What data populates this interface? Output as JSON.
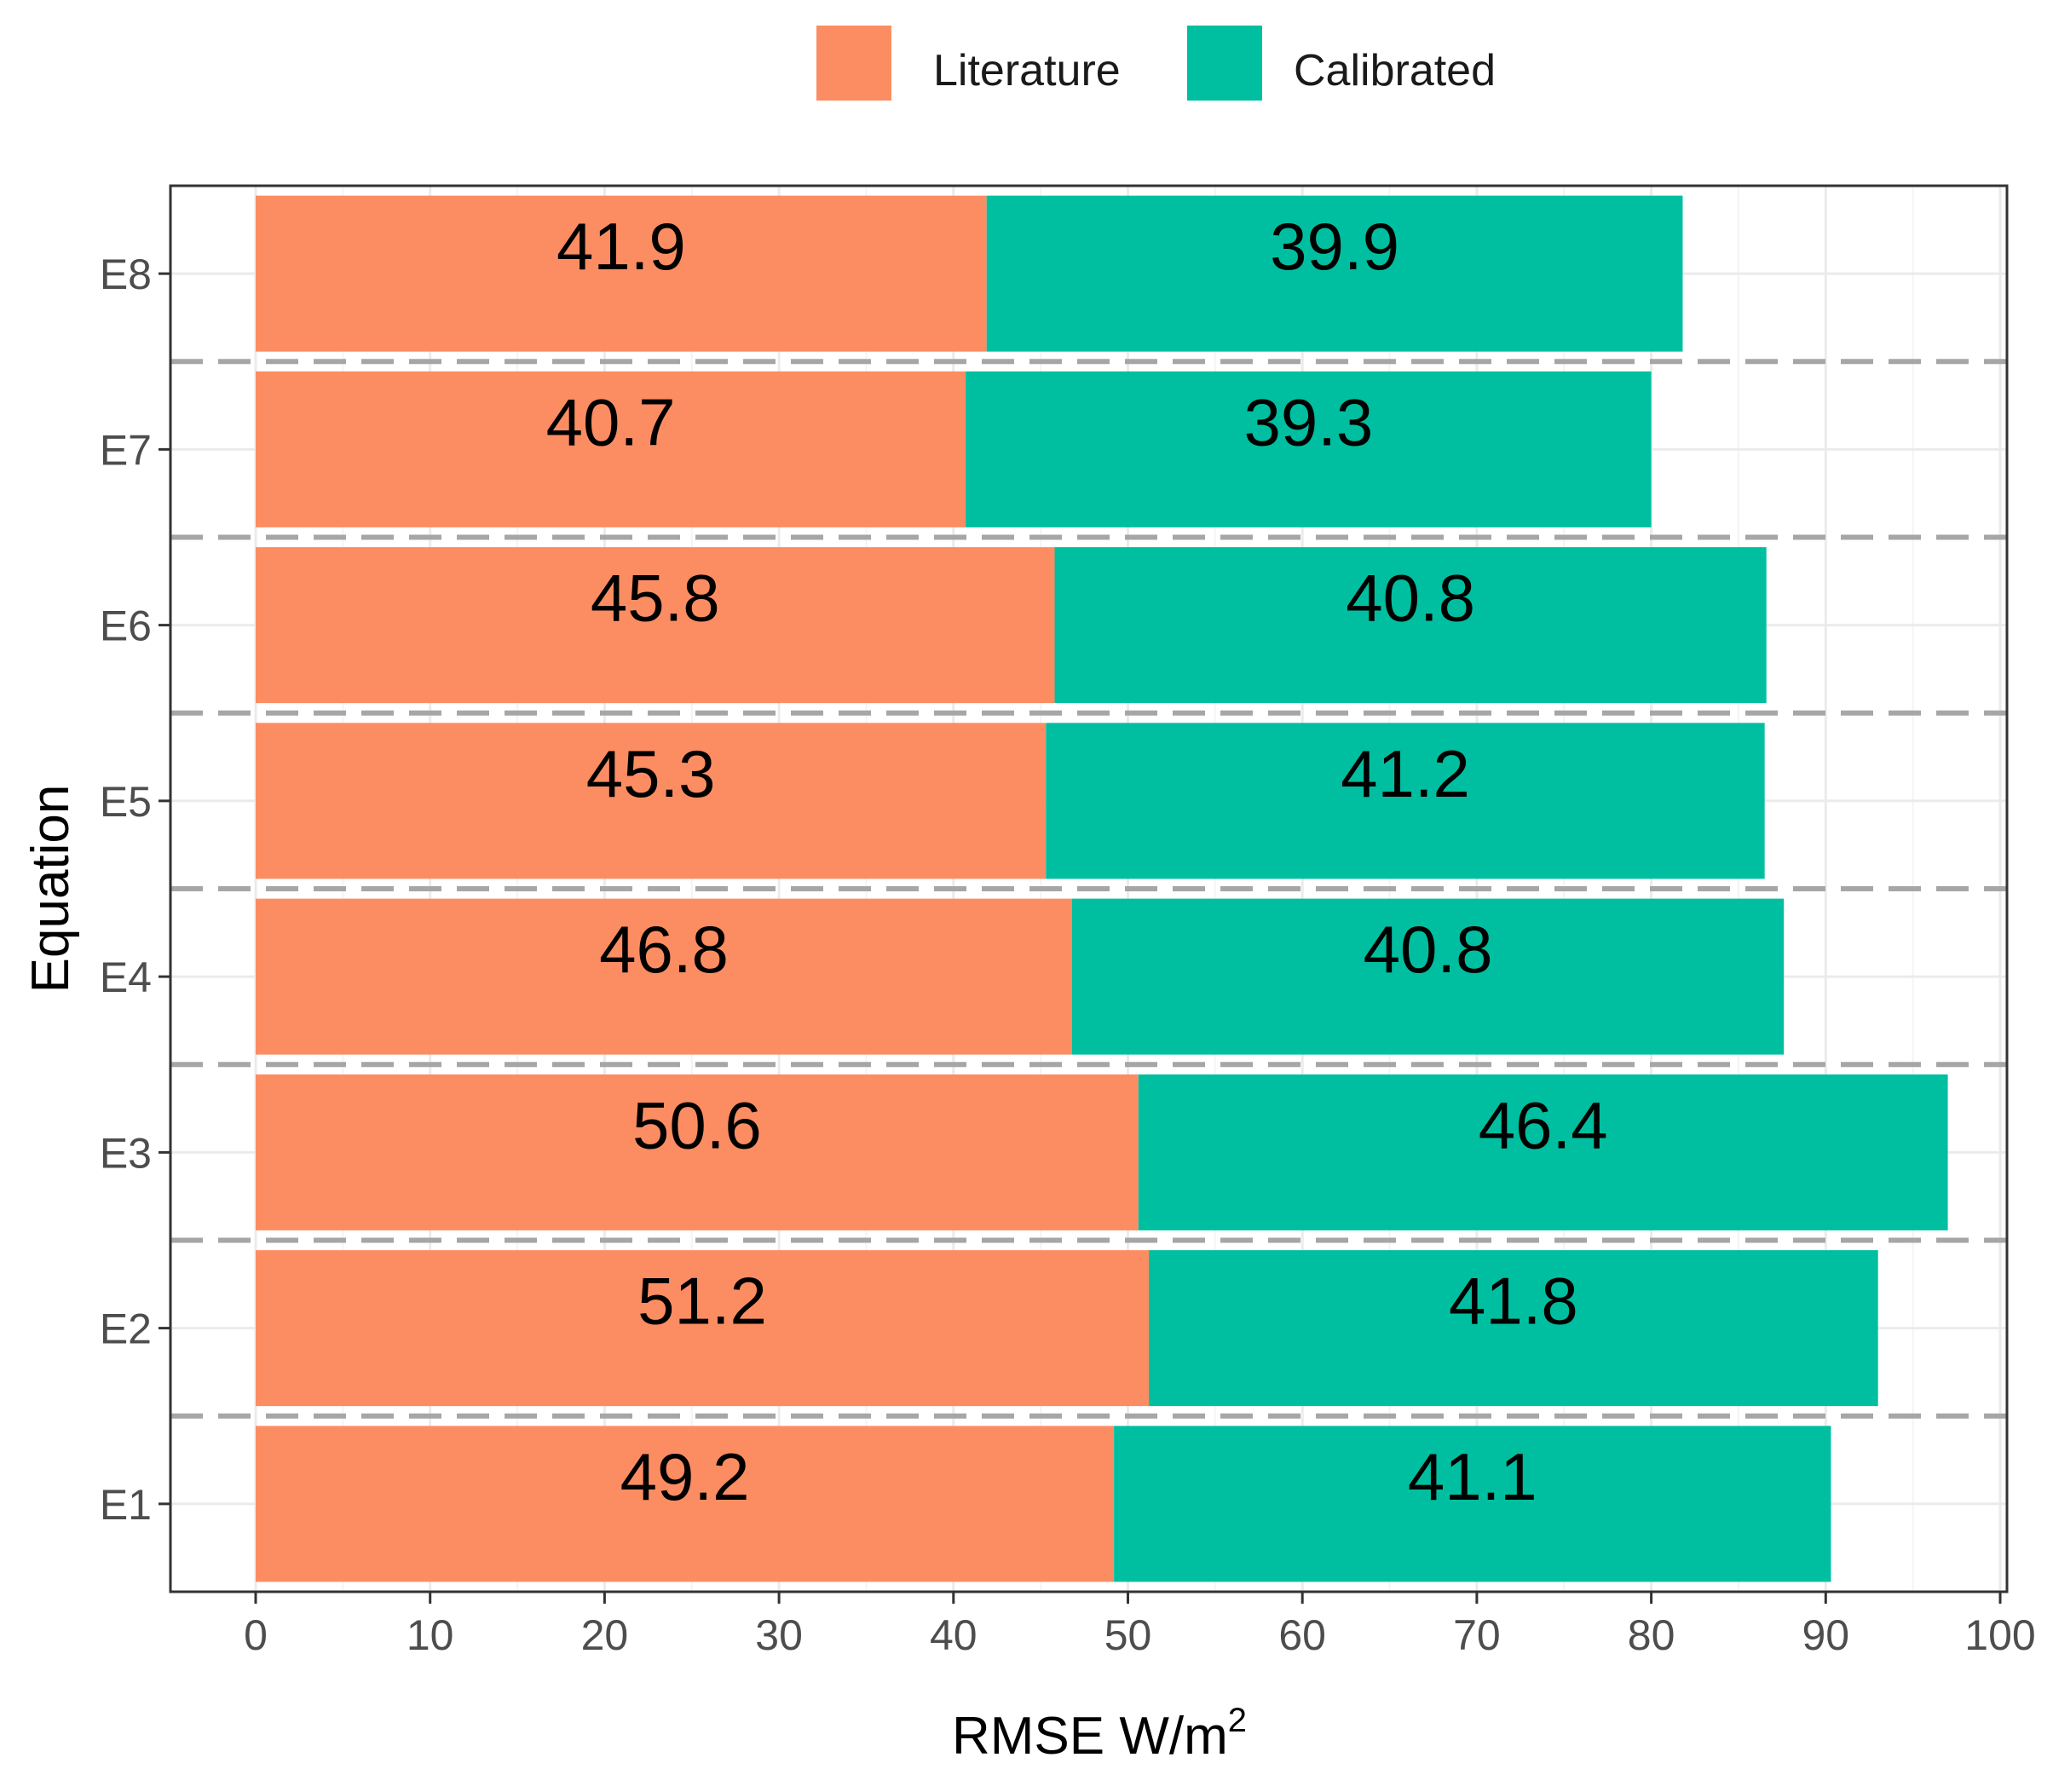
{
  "chart_data": {
    "type": "bar",
    "orientation": "horizontal",
    "stacked": true,
    "categories": [
      "E1",
      "E2",
      "E3",
      "E4",
      "E5",
      "E6",
      "E7",
      "E8"
    ],
    "series": [
      {
        "name": "Literature",
        "color": "#fc8d62",
        "values": [
          49.2,
          51.2,
          50.6,
          46.8,
          45.3,
          45.8,
          40.7,
          41.9
        ]
      },
      {
        "name": "Calibrated",
        "color": "#00bfa0",
        "values": [
          41.1,
          41.8,
          46.4,
          40.8,
          41.2,
          40.8,
          39.3,
          39.9
        ]
      }
    ],
    "xlabel": "RMSE  W/m",
    "xlabel_superscript": "2",
    "ylabel": "Equation",
    "xlim": [
      0,
      100
    ],
    "xticks": [
      0,
      10,
      20,
      30,
      40,
      50,
      60,
      70,
      80,
      90,
      100
    ],
    "legend_position": "top",
    "grid": true,
    "separator_lines": "dashed"
  }
}
